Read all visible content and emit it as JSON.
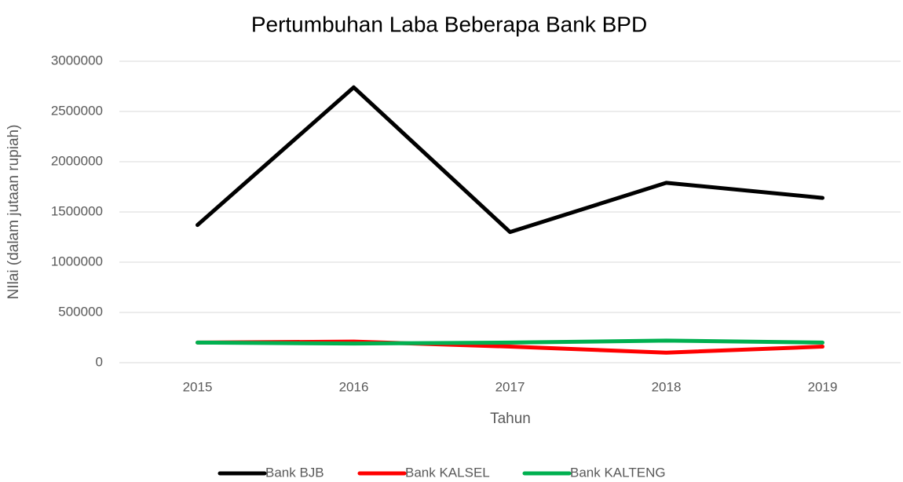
{
  "chart_data": {
    "type": "line",
    "title": "Pertumbuhan Laba Beberapa Bank BPD",
    "x_label": "Tahun",
    "y_label": "NIlai (dalam jutaan rupiah)",
    "categories": [
      "2015",
      "2016",
      "2017",
      "2018",
      "2019"
    ],
    "series": [
      {
        "name": "Bank BJB",
        "color": "#000000",
        "values": [
          1370000,
          2740000,
          1300000,
          1790000,
          1640000
        ]
      },
      {
        "name": "Bank KALSEL",
        "color": "#ff0000",
        "values": [
          200000,
          210000,
          160000,
          100000,
          160000
        ]
      },
      {
        "name": "Bank KALTENG",
        "color": "#00b050",
        "values": [
          200000,
          190000,
          200000,
          220000,
          200000
        ]
      }
    ],
    "ylim": [
      0,
      3000000
    ],
    "yticks": [
      0,
      500000,
      1000000,
      1500000,
      2000000,
      2500000,
      3000000
    ],
    "grid": true,
    "legend": "bottom"
  }
}
